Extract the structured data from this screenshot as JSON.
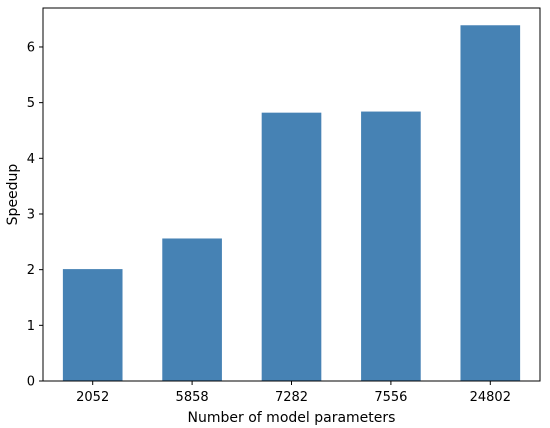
{
  "chart_data": {
    "type": "bar",
    "categories": [
      "2052",
      "5858",
      "7282",
      "7556",
      "24802"
    ],
    "values": [
      2.01,
      2.56,
      4.82,
      4.84,
      6.39
    ],
    "xlabel": "Number of model parameters",
    "ylabel": "Speedup",
    "ylim": [
      0,
      6.7
    ],
    "yticks": [
      0,
      1,
      2,
      3,
      4,
      5,
      6
    ],
    "grid": false,
    "bar_color": "#4682b4"
  }
}
